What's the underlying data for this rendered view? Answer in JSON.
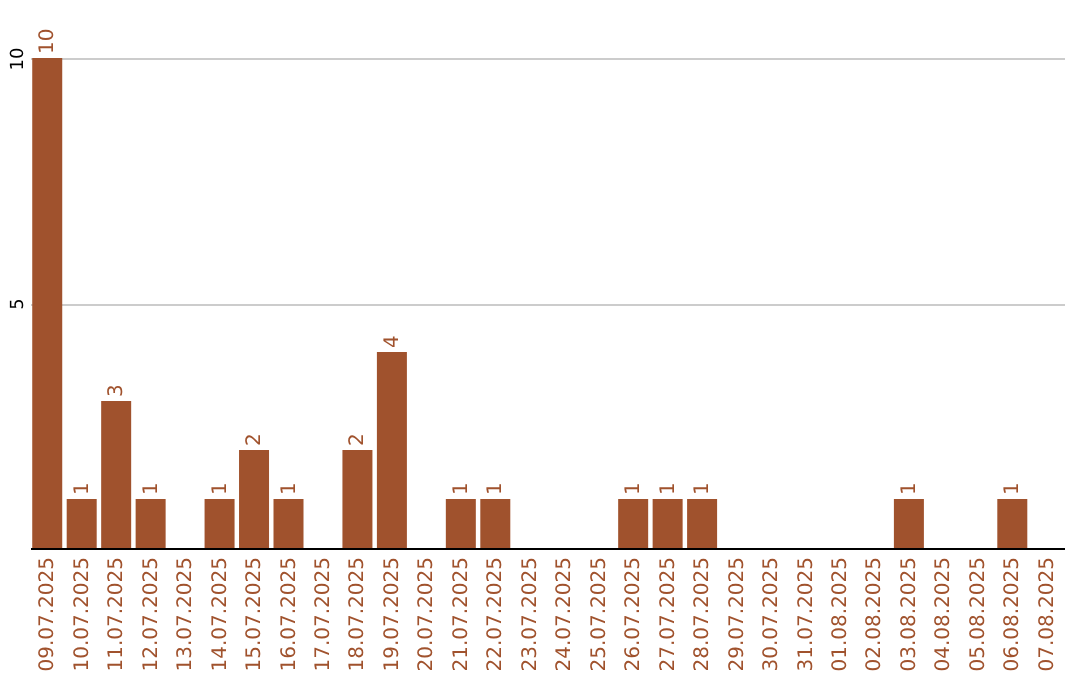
{
  "chart_data": {
    "type": "bar",
    "categories": [
      "09.07.2025",
      "10.07.2025",
      "11.07.2025",
      "12.07.2025",
      "13.07.2025",
      "14.07.2025",
      "15.07.2025",
      "16.07.2025",
      "17.07.2025",
      "18.07.2025",
      "19.07.2025",
      "20.07.2025",
      "21.07.2025",
      "22.07.2025",
      "23.07.2025",
      "24.07.2025",
      "25.07.2025",
      "26.07.2025",
      "27.07.2025",
      "28.07.2025",
      "29.07.2025",
      "30.07.2025",
      "31.07.2025",
      "01.08.2025",
      "02.08.2025",
      "03.08.2025",
      "04.08.2025",
      "05.08.2025",
      "06.08.2025",
      "07.08.2025"
    ],
    "values": [
      10,
      1,
      3,
      1,
      0,
      1,
      2,
      1,
      0,
      2,
      4,
      0,
      1,
      1,
      0,
      0,
      0,
      1,
      1,
      1,
      0,
      0,
      0,
      0,
      0,
      1,
      0,
      0,
      1,
      0
    ],
    "value_labels": [
      "10",
      "1",
      "3",
      "1",
      null,
      "1",
      "2",
      "1",
      null,
      "2",
      "4",
      null,
      "1",
      "1",
      null,
      null,
      null,
      "1",
      "1",
      "1",
      null,
      null,
      null,
      null,
      null,
      "1",
      null,
      null,
      "1",
      null
    ],
    "color": "#a0522d",
    "ylim": [
      0,
      10
    ],
    "yticks": [
      {
        "value": 0,
        "label": null
      },
      5,
      10
    ],
    "grid": "y"
  }
}
